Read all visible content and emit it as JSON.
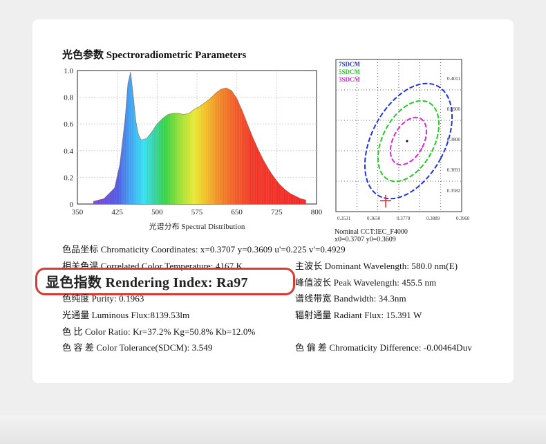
{
  "title": "光色参数 Spectroradiometric Parameters",
  "chart_data": [
    {
      "type": "area",
      "xlabel": "光谱分布 Spectral Distribution",
      "xlim": [
        350,
        800
      ],
      "ylim": [
        0,
        1.0
      ],
      "x_ticks": [
        "350",
        "425",
        "500",
        "575",
        "650",
        "725",
        "800"
      ],
      "y_ticks": [
        "0",
        "0.2",
        "0.4",
        "0.6",
        "0.8",
        "1.0"
      ],
      "grid": true,
      "series": [
        {
          "x": [
            380,
            400,
            420,
            430,
            440,
            445,
            450,
            455,
            460,
            465,
            470,
            480,
            490,
            500,
            510,
            520,
            530,
            540,
            550,
            560,
            570,
            580,
            590,
            600,
            610,
            620,
            630,
            640,
            650,
            660,
            670,
            680,
            690,
            700,
            710,
            720,
            730,
            740,
            750,
            760,
            770,
            780
          ],
          "y": [
            0.02,
            0.04,
            0.12,
            0.3,
            0.65,
            0.9,
            0.99,
            0.82,
            0.62,
            0.52,
            0.48,
            0.49,
            0.54,
            0.6,
            0.64,
            0.67,
            0.68,
            0.68,
            0.67,
            0.68,
            0.71,
            0.73,
            0.76,
            0.79,
            0.83,
            0.86,
            0.87,
            0.85,
            0.79,
            0.7,
            0.6,
            0.5,
            0.41,
            0.33,
            0.26,
            0.2,
            0.15,
            0.11,
            0.08,
            0.06,
            0.04,
            0.03
          ]
        }
      ]
    },
    {
      "type": "scatter",
      "legend": [
        "7SDCM",
        "5SDCM",
        "3SDCM"
      ],
      "legend_colors": [
        "#2233dd",
        "#22cc22",
        "#dd22dd"
      ],
      "x_ticks": [
        "0.3531",
        "0.3650",
        "0.3770",
        "0.3889",
        "0.3960"
      ],
      "y_ticks": [
        "0.4011",
        "0.3900",
        "0.3800",
        "0.3691",
        "0.3582"
      ],
      "caption_lines": [
        "Nominal CCT:IEC_F4000",
        "x0=0.3707   y0=0.3609"
      ]
    }
  ],
  "params": {
    "chromaticity": "色品坐标 Chromaticity Coordinates: x=0.3707 y=0.3609 u'=0.225 v'=0.4929",
    "cct": "相关色温 Correlated Color Temperature: 4167 K",
    "dominant": "主波长 Dominant Wavelength: 580.0 nm(E)",
    "rendering": "显色指数 Rendering Index: Ra97",
    "peak": "峰值波长 Peak Wavelength: 455.5 nm",
    "purity": "色纯度 Purity: 0.1963",
    "bandwidth": "谱线带宽 Bandwidth: 34.3nm",
    "flux": "光通量 Luminous Flux:8139.53lm",
    "radiant": "辐射通量 Radiant Flux: 15.391 W",
    "ratio": "色 比 Color Ratio:   Kr=37.2%  Kg=50.8%  Kb=12.0%",
    "tolerance": "色 容 差 Color Tolerance(SDCM): 3.549",
    "difference": "色 偏 差 Chromaticity Difference: -0.00464Duv"
  },
  "colors": {
    "highlight": "#d63a33"
  }
}
